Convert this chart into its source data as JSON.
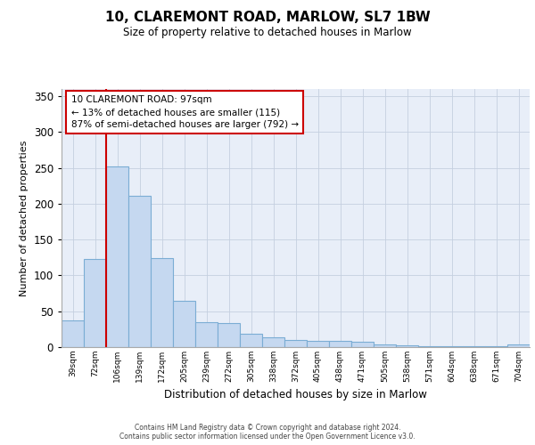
{
  "title1": "10, CLAREMONT ROAD, MARLOW, SL7 1BW",
  "title2": "Size of property relative to detached houses in Marlow",
  "xlabel": "Distribution of detached houses by size in Marlow",
  "ylabel": "Number of detached properties",
  "categories": [
    "39sqm",
    "72sqm",
    "106sqm",
    "139sqm",
    "172sqm",
    "205sqm",
    "239sqm",
    "272sqm",
    "305sqm",
    "338sqm",
    "372sqm",
    "405sqm",
    "438sqm",
    "471sqm",
    "505sqm",
    "538sqm",
    "571sqm",
    "604sqm",
    "638sqm",
    "671sqm",
    "704sqm"
  ],
  "values": [
    37,
    123,
    252,
    211,
    124,
    65,
    35,
    33,
    19,
    14,
    10,
    9,
    9,
    8,
    4,
    2,
    1,
    1,
    1,
    1,
    4
  ],
  "bar_color": "#c5d8f0",
  "bar_edge_color": "#7badd4",
  "ylim": [
    0,
    360
  ],
  "yticks": [
    0,
    50,
    100,
    150,
    200,
    250,
    300,
    350
  ],
  "vline_x": 1.5,
  "vline_color": "#cc0000",
  "annotation_line1": "10 CLAREMONT ROAD: 97sqm",
  "annotation_line2": "← 13% of detached houses are smaller (115)",
  "annotation_line3": "87% of semi-detached houses are larger (792) →",
  "annotation_box_facecolor": "#ffffff",
  "annotation_box_edgecolor": "#cc0000",
  "plot_bg": "#e8eef8",
  "footer1": "Contains HM Land Registry data © Crown copyright and database right 2024.",
  "footer2": "Contains public sector information licensed under the Open Government Licence v3.0."
}
